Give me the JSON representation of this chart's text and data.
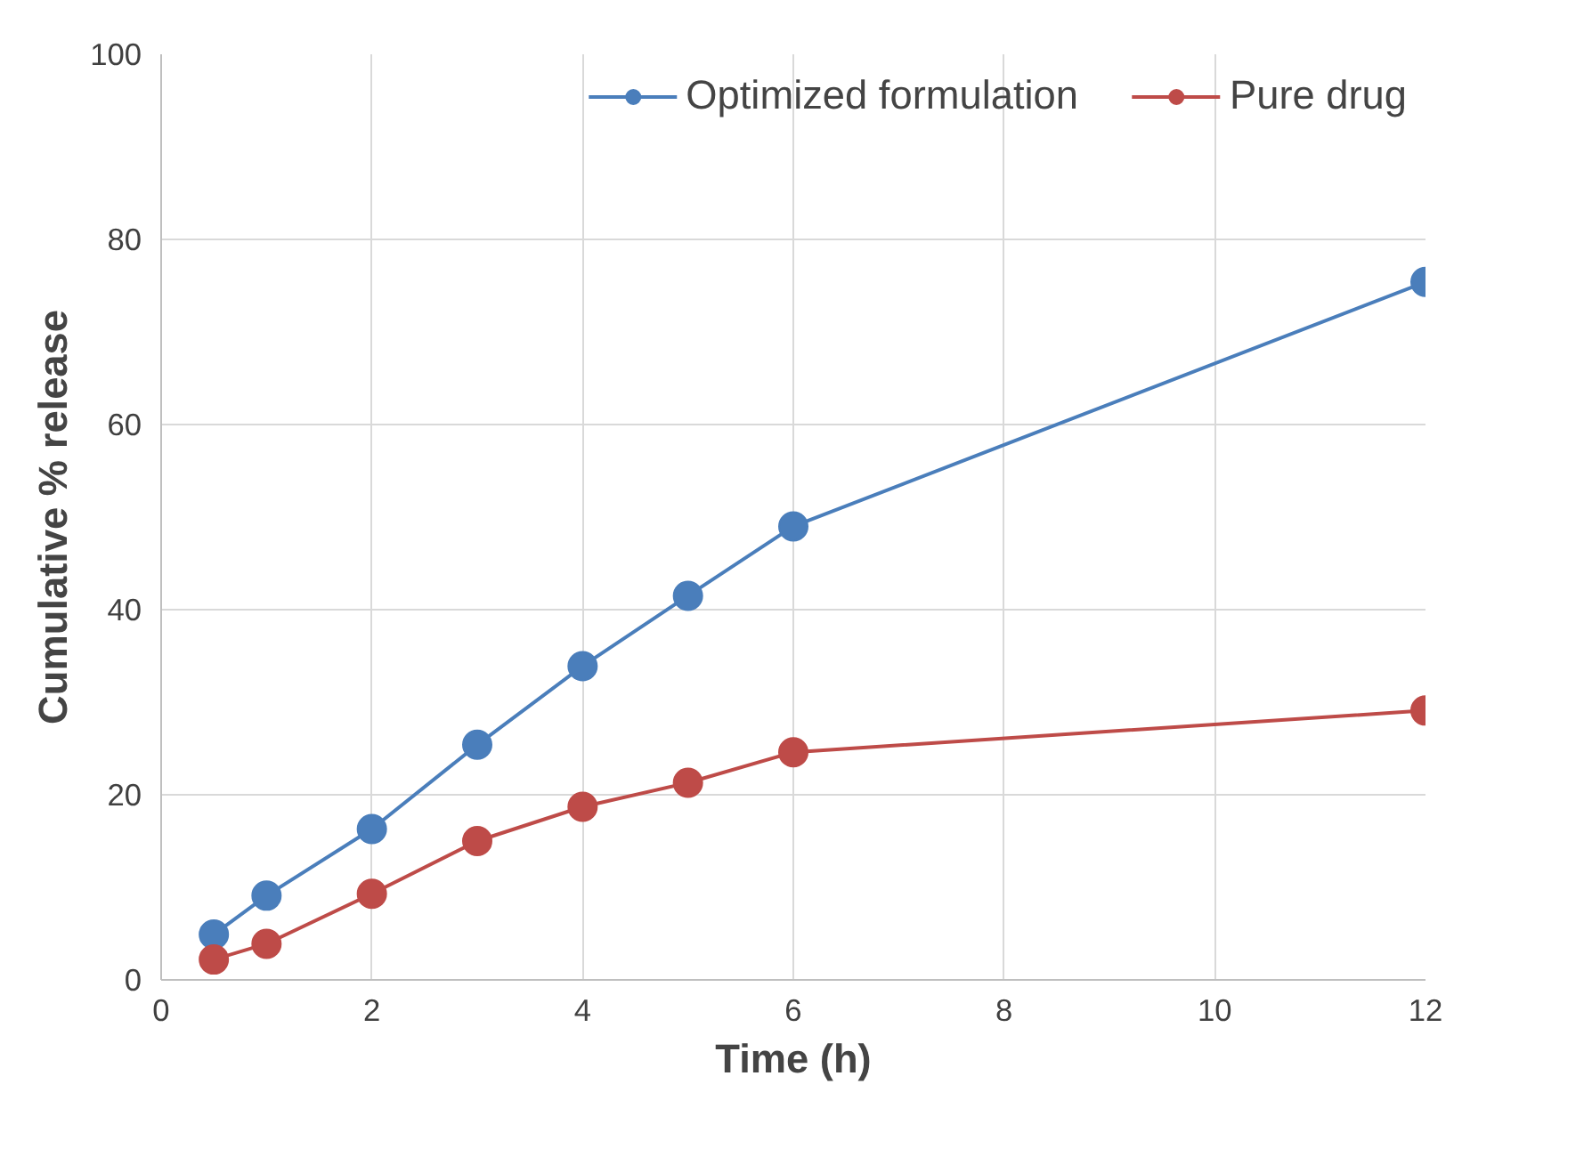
{
  "chart_data": {
    "type": "line",
    "xlabel": "Time (h)",
    "ylabel": "Cumulative % release",
    "x": [
      0.5,
      1,
      2,
      3,
      4,
      5,
      6,
      12
    ],
    "series": [
      {
        "name": "Optimized formulation",
        "color": "#4a7ebb",
        "values": [
          4.9,
          9.1,
          16.3,
          25.4,
          33.9,
          41.5,
          49.0,
          75.4
        ]
      },
      {
        "name": "Pure drug",
        "color": "#be4b48",
        "values": [
          2.2,
          3.9,
          9.3,
          15.0,
          18.7,
          21.3,
          24.6,
          29.1
        ]
      }
    ],
    "xlim": [
      0,
      12
    ],
    "xticks": [
      0,
      2,
      4,
      6,
      8,
      10,
      12
    ],
    "ylim": [
      0,
      100
    ],
    "yticks": [
      0,
      20,
      40,
      60,
      80,
      100
    ],
    "grid": true,
    "legend": "top",
    "marker": "circle",
    "line_style": "solid"
  }
}
